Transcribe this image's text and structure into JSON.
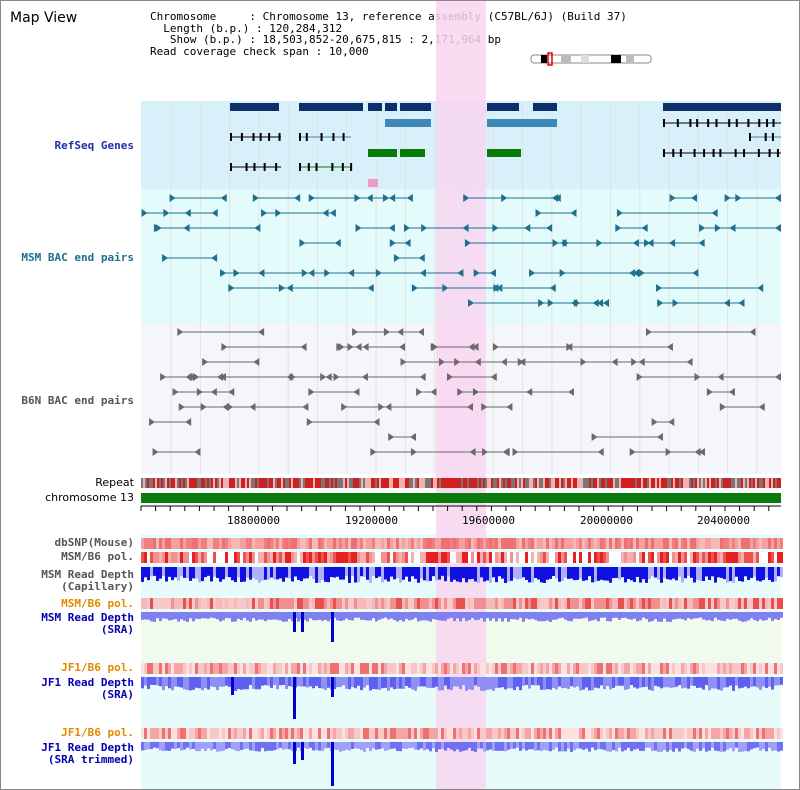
{
  "window": {
    "title": "Map View"
  },
  "info": {
    "chromosome_key": "Chromosome",
    "chromosome_value": "Chromosome 13, reference assembly (C57BL/6J) (Build 37)",
    "length_key": "Length (b.p.)",
    "length_value": "120,284,312",
    "show_key": "Show (b.p.)",
    "show_value": "18,503,852-20,675,815 : 2,171,964 bp",
    "coverage_key": "Read coverage check span",
    "coverage_value": "10,000"
  },
  "tracks": {
    "refseq": "RefSeq Genes",
    "msm_bac": "MSM BAC end pairs",
    "b6n_bac": "B6N BAC end pairs",
    "repeat": "Repeat",
    "chromosome": "chromosome 13",
    "dbsnp": "dbSNP(Mouse)",
    "msm_b6_pol_1": "MSM/B6 pol.",
    "msm_depth_cap_1": "MSM Read Depth",
    "msm_depth_cap_2": "(Capillary)",
    "msm_b6_pol_2": "MSM/B6 pol.",
    "msm_depth_sra_1": "MSM Read Depth",
    "msm_depth_sra_2": "(SRA)",
    "jf1_b6_pol_1": "JF1/B6 pol.",
    "jf1_depth_sra_1": "JF1 Read Depth",
    "jf1_depth_sra_2": "(SRA)",
    "jf1_b6_pol_2": "JF1/B6 pol.",
    "jf1_depth_trim_1": "JF1 Read Depth",
    "jf1_depth_trim_2": "(SRA trimmed)"
  },
  "axis": {
    "ticks": [
      "18800000",
      "19200000",
      "19600000",
      "20000000",
      "20400000"
    ]
  },
  "colors": {
    "refseq_label": "#1f2fa8",
    "msm_label": "#1f6f8f",
    "b6n_label": "#555555",
    "orange_label": "#e08a00",
    "blue_label": "#0000b0",
    "highlight": "#f8d6f0",
    "refseq_bg": "#d8f0fa",
    "msm_bg": "#e4fbfb",
    "b6n_bg": "#f4f6fa",
    "chromosome_bar": "#0a7a0a"
  }
}
